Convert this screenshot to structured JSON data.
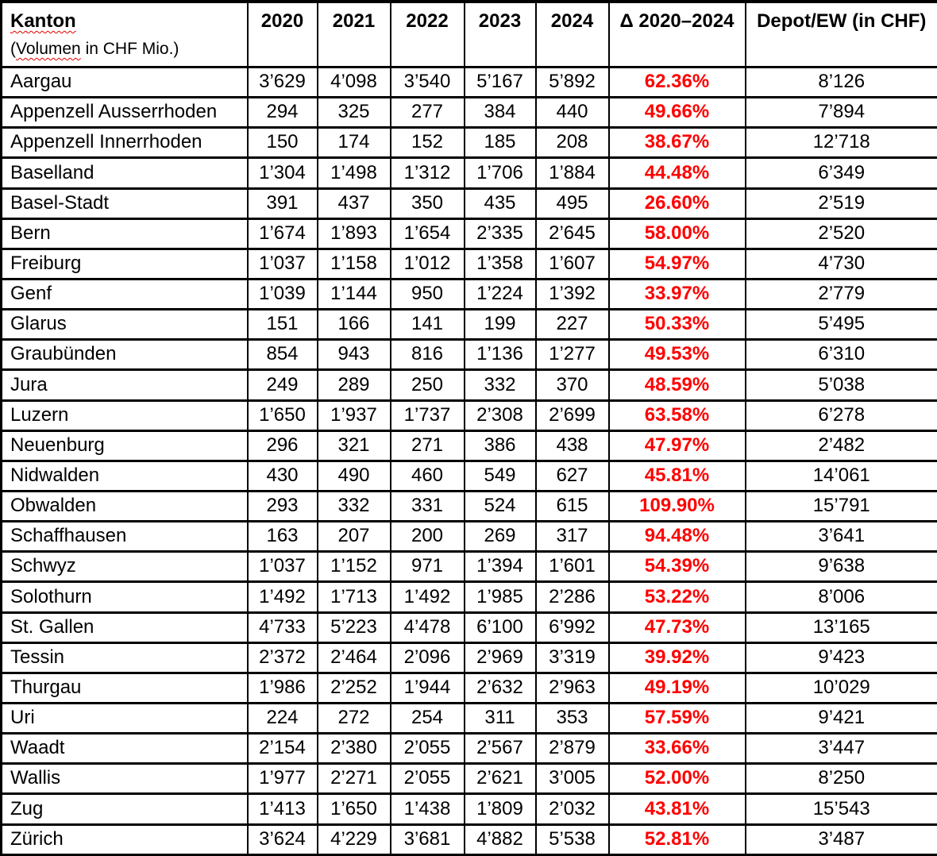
{
  "colors": {
    "text": "#000000",
    "delta_text": "#ff0000",
    "spellcheck_squiggle": "#e00000",
    "border": "#000000",
    "background": "#ffffff"
  },
  "table": {
    "header": {
      "kanton_title": "Kanton",
      "kanton_subtitle": {
        "prefix": "(",
        "flagged": "Volumen",
        "suffix": " in CHF Mio.)"
      },
      "year_columns": [
        "2020",
        "2021",
        "2022",
        "2023",
        "2024"
      ],
      "delta_label": "Δ 2020–2024",
      "depot_label": "Depot/EW (in CHF)"
    },
    "rows": [
      {
        "kanton": "Aargau",
        "values": [
          "3’629",
          "4’098",
          "3’540",
          "5’167",
          "5’892"
        ],
        "delta": "62.36%",
        "depot": "8’126"
      },
      {
        "kanton": "Appenzell Ausserrhoden",
        "values": [
          "294",
          "325",
          "277",
          "384",
          "440"
        ],
        "delta": "49.66%",
        "depot": "7’894"
      },
      {
        "kanton": "Appenzell Innerrhoden",
        "values": [
          "150",
          "174",
          "152",
          "185",
          "208"
        ],
        "delta": "38.67%",
        "depot": "12’718"
      },
      {
        "kanton": "Baselland",
        "values": [
          "1’304",
          "1’498",
          "1’312",
          "1’706",
          "1’884"
        ],
        "delta": "44.48%",
        "depot": "6’349"
      },
      {
        "kanton": "Basel-Stadt",
        "values": [
          "391",
          "437",
          "350",
          "435",
          "495"
        ],
        "delta": "26.60%",
        "depot": "2’519"
      },
      {
        "kanton": "Bern",
        "values": [
          "1’674",
          "1’893",
          "1’654",
          "2’335",
          "2’645"
        ],
        "delta": "58.00%",
        "depot": "2’520"
      },
      {
        "kanton": "Freiburg",
        "values": [
          "1’037",
          "1’158",
          "1’012",
          "1’358",
          "1’607"
        ],
        "delta": "54.97%",
        "depot": "4’730"
      },
      {
        "kanton": "Genf",
        "values": [
          "1’039",
          "1’144",
          "950",
          "1’224",
          "1’392"
        ],
        "delta": "33.97%",
        "depot": "2’779"
      },
      {
        "kanton": "Glarus",
        "values": [
          "151",
          "166",
          "141",
          "199",
          "227"
        ],
        "delta": "50.33%",
        "depot": "5’495"
      },
      {
        "kanton": "Graubünden",
        "values": [
          "854",
          "943",
          "816",
          "1’136",
          "1’277"
        ],
        "delta": "49.53%",
        "depot": "6’310"
      },
      {
        "kanton": "Jura",
        "values": [
          "249",
          "289",
          "250",
          "332",
          "370"
        ],
        "delta": "48.59%",
        "depot": "5’038"
      },
      {
        "kanton": "Luzern",
        "values": [
          "1’650",
          "1’937",
          "1’737",
          "2’308",
          "2’699"
        ],
        "delta": "63.58%",
        "depot": "6’278"
      },
      {
        "kanton": "Neuenburg",
        "values": [
          "296",
          "321",
          "271",
          "386",
          "438"
        ],
        "delta": "47.97%",
        "depot": "2’482"
      },
      {
        "kanton": "Nidwalden",
        "values": [
          "430",
          "490",
          "460",
          "549",
          "627"
        ],
        "delta": "45.81%",
        "depot": "14’061"
      },
      {
        "kanton": "Obwalden",
        "values": [
          "293",
          "332",
          "331",
          "524",
          "615"
        ],
        "delta": "109.90%",
        "depot": "15’791"
      },
      {
        "kanton": "Schaffhausen",
        "values": [
          "163",
          "207",
          "200",
          "269",
          "317"
        ],
        "delta": "94.48%",
        "depot": "3’641"
      },
      {
        "kanton": "Schwyz",
        "values": [
          "1’037",
          "1’152",
          "971",
          "1’394",
          "1’601"
        ],
        "delta": "54.39%",
        "depot": "9’638"
      },
      {
        "kanton": "Solothurn",
        "values": [
          "1’492",
          "1’713",
          "1’492",
          "1’985",
          "2’286"
        ],
        "delta": "53.22%",
        "depot": "8’006"
      },
      {
        "kanton": "St. Gallen",
        "values": [
          "4’733",
          "5’223",
          "4’478",
          "6’100",
          "6’992"
        ],
        "delta": "47.73%",
        "depot": "13’165"
      },
      {
        "kanton": "Tessin",
        "values": [
          "2’372",
          "2’464",
          "2’096",
          "2’969",
          "3’319"
        ],
        "delta": "39.92%",
        "depot": "9’423"
      },
      {
        "kanton": "Thurgau",
        "values": [
          "1’986",
          "2’252",
          "1’944",
          "2’632",
          "2’963"
        ],
        "delta": "49.19%",
        "depot": "10’029"
      },
      {
        "kanton": "Uri",
        "values": [
          "224",
          "272",
          "254",
          "311",
          "353"
        ],
        "delta": "57.59%",
        "depot": "9’421"
      },
      {
        "kanton": "Waadt",
        "values": [
          "2’154",
          "2’380",
          "2’055",
          "2’567",
          "2’879"
        ],
        "delta": "33.66%",
        "depot": "3’447"
      },
      {
        "kanton": "Wallis",
        "values": [
          "1’977",
          "2’271",
          "2’055",
          "2’621",
          "3’005"
        ],
        "delta": "52.00%",
        "depot": "8’250"
      },
      {
        "kanton": "Zug",
        "values": [
          "1’413",
          "1’650",
          "1’438",
          "1’809",
          "2’032"
        ],
        "delta": "43.81%",
        "depot": "15’543"
      },
      {
        "kanton": "Zürich",
        "values": [
          "3’624",
          "4’229",
          "3’681",
          "4’882",
          "5’538"
        ],
        "delta": "52.81%",
        "depot": "3’487"
      }
    ]
  }
}
